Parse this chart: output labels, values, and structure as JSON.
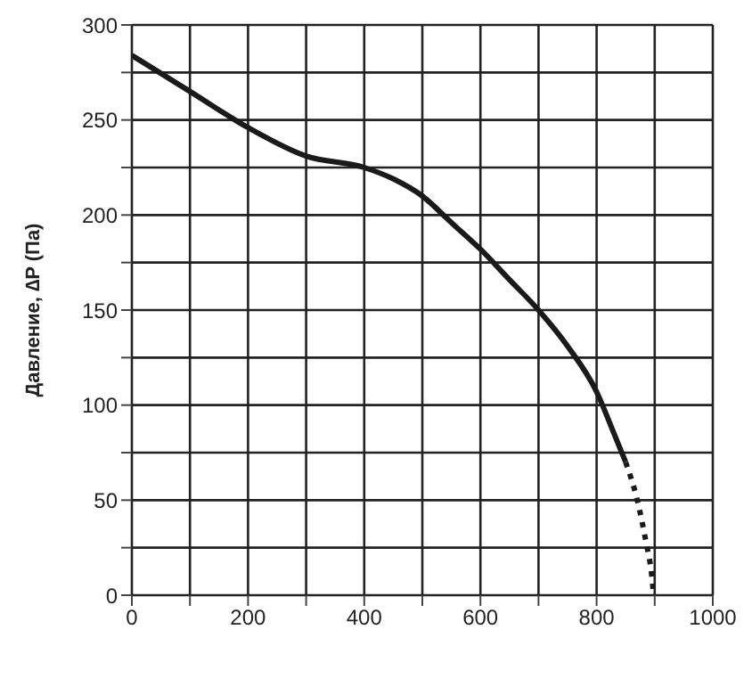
{
  "chart_data": {
    "type": "line",
    "ylabel": "Давление, ∆P (Па)",
    "xlim": [
      0,
      1000
    ],
    "xticks": [
      0,
      {
        "value": 100,
        "label": null
      },
      200,
      {
        "value": 300,
        "label": null
      },
      400,
      {
        "value": 500,
        "label": null
      },
      600,
      {
        "value": 700,
        "label": null
      },
      800,
      {
        "value": 900,
        "label": null
      },
      1000
    ],
    "ylim": [
      0,
      300
    ],
    "yticks": [
      0,
      {
        "value": 25,
        "label": null
      },
      50,
      {
        "value": 75,
        "label": null
      },
      100,
      {
        "value": 125,
        "label": null
      },
      150,
      {
        "value": 175,
        "label": null
      },
      200,
      {
        "value": 225,
        "label": null
      },
      250,
      {
        "value": 275,
        "label": null
      },
      300
    ],
    "grid": true,
    "marker": "none",
    "series": [
      {
        "color": "#1a1a1a",
        "line_style": "solid",
        "x": [
          0,
          100,
          200,
          300,
          400,
          450,
          500,
          550,
          600,
          650,
          700,
          750,
          800,
          830,
          850
        ],
        "values": [
          284,
          265,
          246,
          231,
          225,
          219,
          210,
          196,
          182,
          166,
          150,
          131,
          107,
          85,
          70
        ]
      },
      {
        "color": "#1a1a1a",
        "line_style": "dotted",
        "x": [
          850,
          870,
          885,
          895,
          898
        ],
        "values": [
          70,
          50,
          28,
          10,
          0
        ]
      }
    ]
  }
}
